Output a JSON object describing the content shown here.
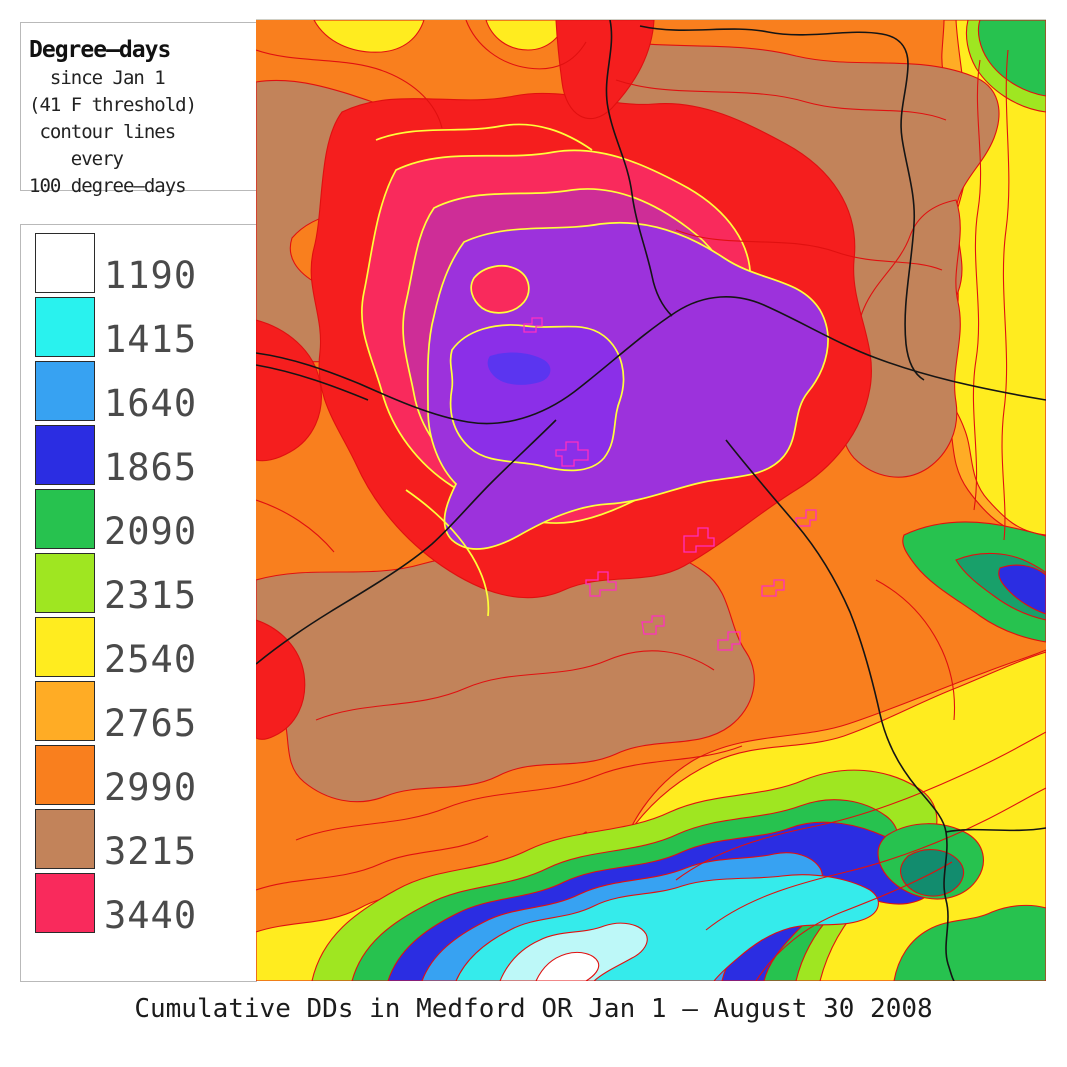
{
  "info_box": {
    "title": "Degree—days",
    "details": "  since Jan 1\n(41 F threshold)\n contour lines\n    every\n100 degree—days"
  },
  "legend": {
    "items": [
      {
        "value": "1190",
        "color": "#ffffff"
      },
      {
        "value": "1415",
        "color": "#29f2ee"
      },
      {
        "value": "1640",
        "color": "#37a2f2"
      },
      {
        "value": "1865",
        "color": "#2b2de2"
      },
      {
        "value": "2090",
        "color": "#27c24f"
      },
      {
        "value": "2315",
        "color": "#9fe621"
      },
      {
        "value": "2540",
        "color": "#ffec1f"
      },
      {
        "value": "2765",
        "color": "#ffac25"
      },
      {
        "value": "2990",
        "color": "#f97f1e"
      },
      {
        "value": "3215",
        "color": "#c2835a"
      },
      {
        "value": "3440",
        "color": "#f92a5c"
      }
    ]
  },
  "caption": "Cumulative DDs in Medford OR Jan 1 — August 30 2008",
  "map": {
    "colors": {
      "orange": "#f97f1e",
      "yellow": "#ffec1f",
      "amber": "#ffac25",
      "brown": "#c2835a",
      "red": "#f51e1e",
      "crimson": "#f92a5c",
      "magenta": "#ce2d97",
      "purple": "#9c32dc",
      "bright_purple": "#8b2fe8",
      "indigo": "#5b35f0",
      "green": "#27c24f",
      "yellow_green": "#9fe621",
      "teal": "#18a06a",
      "dark_teal": "#128c6e",
      "blue_dark": "#2b2de2",
      "blue_med": "#37a2f2",
      "cyan": "#35ebeb",
      "pale_cyan": "#bdf8f8",
      "white": "#ffffff",
      "contour_red": "#e01010",
      "contour_yellow": "#ffff3a",
      "speckle": "#ff2fc0",
      "road": "#151515"
    }
  },
  "chart_data": {
    "type": "heatmap",
    "subtype": "filled contour map",
    "title": "Cumulative DDs in Medford OR Jan 1 — August 30 2008",
    "variable": "Degree-days since Jan 1 (41 F threshold)",
    "contour_interval_degree_days": 100,
    "legend_levels": [
      1190,
      1415,
      1640,
      1865,
      2090,
      2315,
      2540,
      2765,
      2990,
      3215,
      3440
    ],
    "legend_step": 225,
    "legend_colors": [
      "#ffffff",
      "#29f2ee",
      "#37a2f2",
      "#2b2de2",
      "#27c24f",
      "#9fe621",
      "#ffec1f",
      "#ffac25",
      "#f97f1e",
      "#c2835a",
      "#f92a5c"
    ],
    "above_scale_colors_on_map": [
      "#ce2d97",
      "#9c32dc",
      "#8b2fe8",
      "#5b35f0"
    ],
    "features": {
      "maximum": "magenta/purple bullseye (values above 3440 DD) in upper-center of map around Medford valley",
      "minimum": "white/pale-cyan core (~1190 DD) in mountain mass at bottom-center",
      "secondary_lows": [
        "blue-green pocket at right-center edge",
        "green patch at top-right corner",
        "teal-green spots at bottom-right"
      ],
      "line_overlays": [
        "thin red contour lines every 100 DD",
        "yellow contour lines ringing the warm center",
        "magenta speckle contours southeast of the purple core",
        "black road lines crossing the map"
      ]
    },
    "legend_position": "left panel",
    "grid": false
  }
}
